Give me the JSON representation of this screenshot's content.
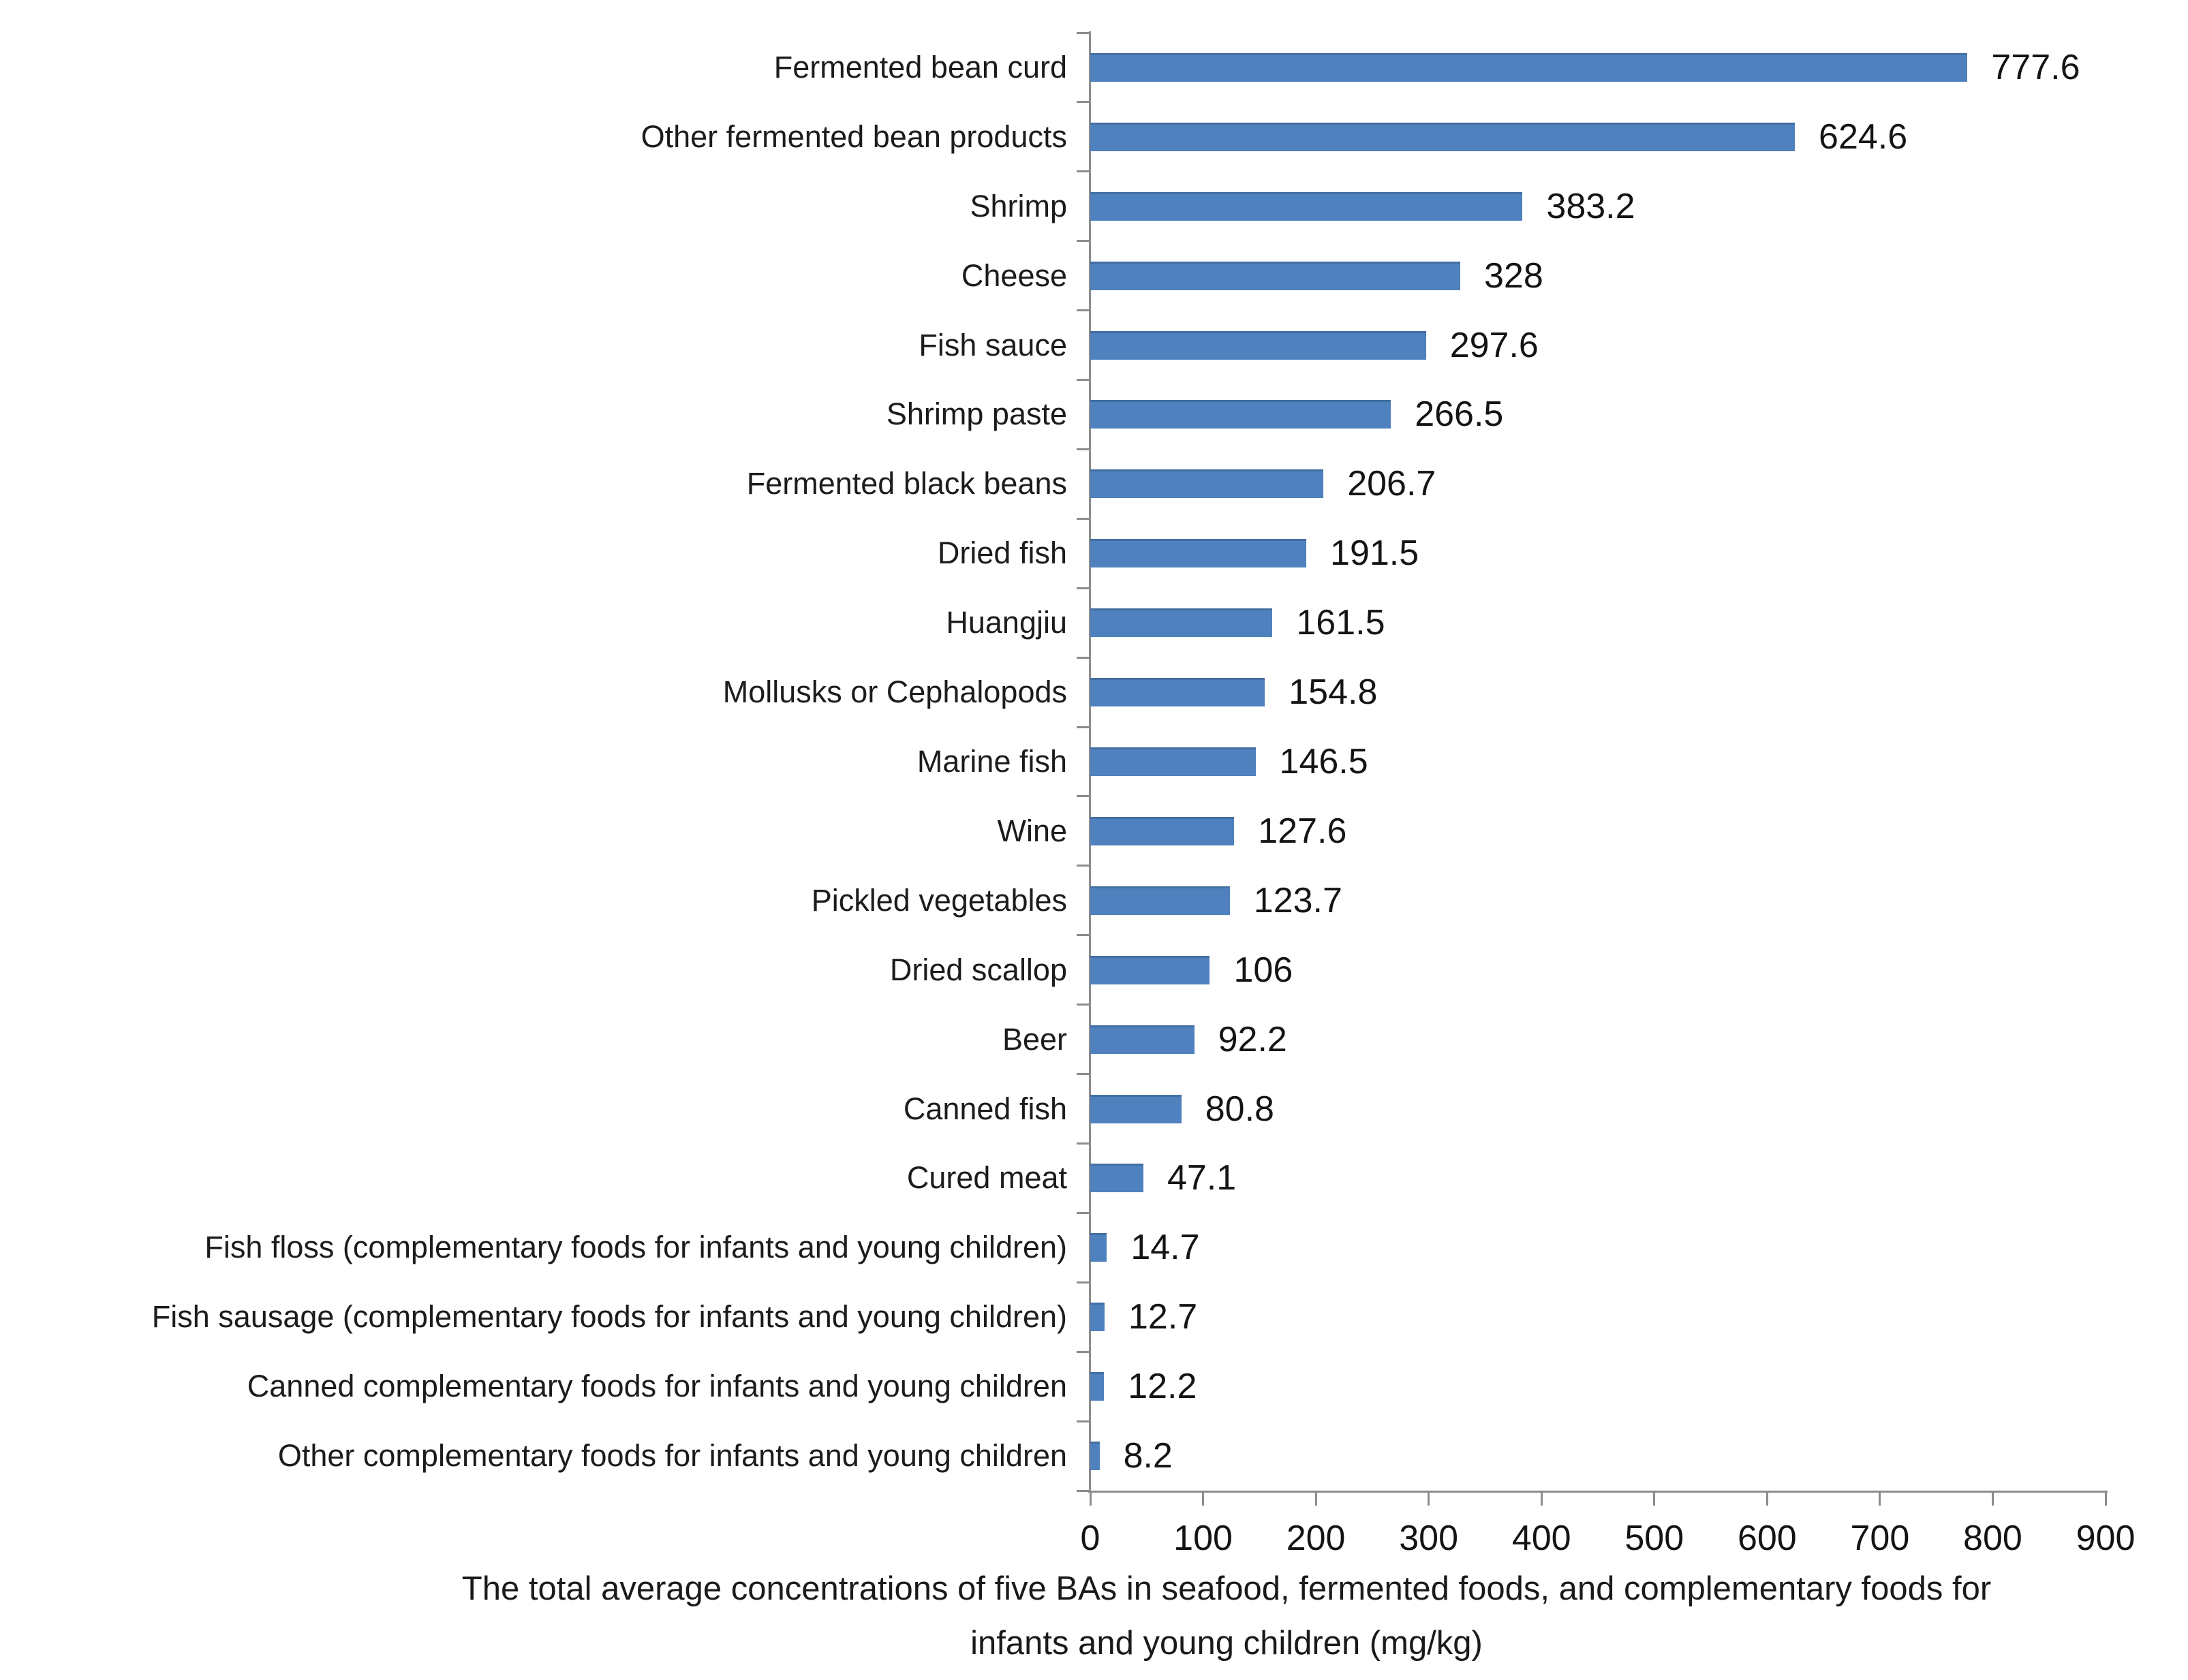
{
  "chart_data": {
    "type": "bar",
    "orientation": "horizontal",
    "title": "",
    "categories": [
      "Fermented bean curd",
      "Other fermented bean products",
      "Shrimp",
      "Cheese",
      "Fish sauce",
      "Shrimp paste",
      "Fermented black beans",
      "Dried fish",
      "Huangjiu",
      "Mollusks or Cephalopods",
      "Marine fish",
      "Wine",
      "Pickled vegetables",
      "Dried scallop",
      "Beer",
      "Canned fish",
      "Cured meat",
      "Fish floss (complementary foods for infants and young children)",
      "Fish sausage (complementary foods for infants and young children)",
      "Canned complementary foods for infants and young children",
      "Other complementary foods for infants and young children"
    ],
    "values": [
      777.6,
      624.6,
      383.2,
      328,
      297.6,
      266.5,
      206.7,
      191.5,
      161.5,
      154.8,
      146.5,
      127.6,
      123.7,
      106,
      92.2,
      80.8,
      47.1,
      14.7,
      12.7,
      12.2,
      8.2
    ],
    "value_labels": [
      "777.6",
      "624.6",
      "383.2",
      "328",
      "297.6",
      "266.5",
      "206.7",
      "191.5",
      "161.5",
      "154.8",
      "146.5",
      "127.6",
      "123.7",
      "106",
      "92.2",
      "80.8",
      "47.1",
      "14.7",
      "12.7",
      "12.2",
      "8.2"
    ],
    "xlim": [
      0,
      900
    ],
    "x_ticks": [
      "0",
      "100",
      "200",
      "300",
      "400",
      "500",
      "600",
      "700",
      "800",
      "900"
    ],
    "xlabel": "",
    "ylabel": "",
    "grid": false,
    "legend": null,
    "caption_lines": [
      "The total average concentrations of five BAs in seafood, fermented foods, and complementary foods for",
      "infants and young children (mg/kg)"
    ],
    "colors": {
      "bar": "#4E81BD",
      "axis": "#8C8C8C",
      "text": "#1C1C1C"
    }
  }
}
